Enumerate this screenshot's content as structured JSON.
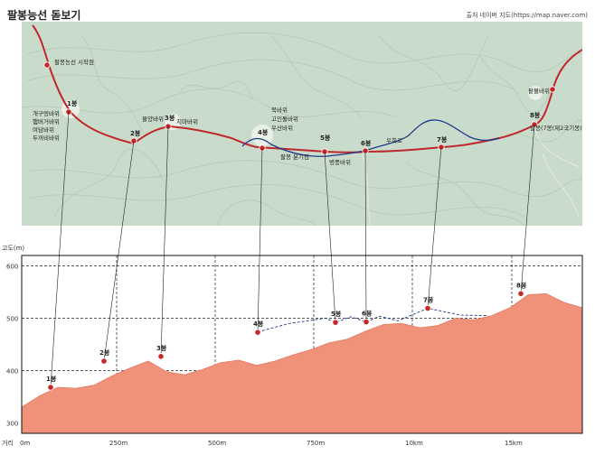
{
  "header": {
    "title": "팔봉능선 돋보기",
    "source": "출처 네이버 지도(https://map.naver.com)"
  },
  "map": {
    "labels": {
      "start": "팔봉능선 시작점",
      "p1": "1봉",
      "p1_rocks": [
        "개구멍바위",
        "햄버거바위",
        "여담바위",
        "두꺼비바위"
      ],
      "p2": "2봉",
      "p3": "3봉",
      "rock_gomak": "물양바위",
      "rock_chima": "치마바위",
      "p4": "4봉",
      "p4_rocks": [
        "북바위",
        "고인돌바위",
        "우산바위"
      ],
      "junction": "팔봉 분기점",
      "p5": "5봉",
      "rock_byeongpung": "병풍바위",
      "p6": "6봉",
      "bypass": "우회로",
      "p7": "7봉",
      "p8": "8봉",
      "rock_pat": "팥볼바위",
      "p8_note": "팔봉(7봉(제2국기봉)"
    }
  },
  "chart_data": {
    "type": "area",
    "ylabel": "고도(m)",
    "xlabel": "거리",
    "ylim": [
      280,
      620
    ],
    "yticks": [
      300,
      400,
      500,
      600
    ],
    "xticks": [
      "0m",
      "250m",
      "500m",
      "750m",
      "10km",
      "15km"
    ],
    "profile_elevation": [
      330,
      352,
      368,
      366,
      372,
      390,
      405,
      418,
      398,
      392,
      402,
      415,
      420,
      410,
      418,
      430,
      440,
      453,
      460,
      475,
      488,
      490,
      482,
      486,
      500,
      497,
      505,
      520,
      545,
      547,
      530,
      520
    ],
    "peaks": [
      {
        "name": "1봉",
        "elevation": 368
      },
      {
        "name": "2봉",
        "elevation": 418
      },
      {
        "name": "3봉",
        "elevation": 427
      },
      {
        "name": "4봉",
        "elevation": 473
      },
      {
        "name": "5봉",
        "elevation": 492
      },
      {
        "name": "6봉",
        "elevation": 493
      },
      {
        "name": "7봉",
        "elevation": 519
      },
      {
        "name": "8봉",
        "elevation": 547
      }
    ],
    "colors": {
      "area": "#f0917a",
      "trail": "#c0272d",
      "bypass": "#1e3a8a",
      "peak": "#c62828"
    }
  }
}
